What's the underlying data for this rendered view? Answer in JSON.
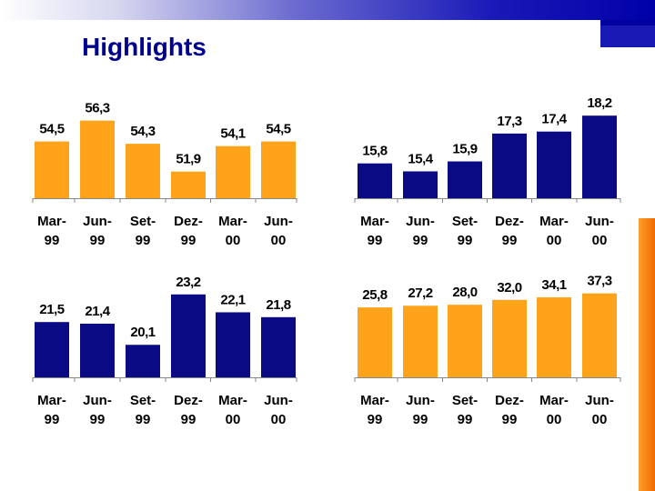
{
  "header": {
    "title": "Highlights"
  },
  "colors": {
    "orange": "#ffa31a",
    "navy": "#0a0a85"
  },
  "chart_data": [
    {
      "type": "bar",
      "panel": "top-left",
      "color": "orange",
      "categories": [
        [
          "Mar-",
          "99"
        ],
        [
          "Jun-",
          "99"
        ],
        [
          "Set-",
          "99"
        ],
        [
          "Dez-",
          "99"
        ],
        [
          "Mar-",
          "00"
        ],
        [
          "Jun-",
          "00"
        ]
      ],
      "values": [
        54.5,
        56.3,
        54.3,
        51.9,
        54.1,
        54.5
      ],
      "labels": [
        "54,5",
        "56,3",
        "54,3",
        "51,9",
        "54,1",
        "54,5"
      ],
      "ylim": [
        49.6,
        56.9
      ]
    },
    {
      "type": "bar",
      "panel": "top-right",
      "color": "navy",
      "categories": [
        [
          "Mar-",
          "99"
        ],
        [
          "Jun-",
          "99"
        ],
        [
          "Set-",
          "99"
        ],
        [
          "Dez-",
          "99"
        ],
        [
          "Mar-",
          "00"
        ],
        [
          "Jun-",
          "00"
        ]
      ],
      "values": [
        15.8,
        15.4,
        15.9,
        17.3,
        17.4,
        18.2
      ],
      "labels": [
        "15,8",
        "15,4",
        "15,9",
        "17,3",
        "17,4",
        "18,2"
      ],
      "ylim": [
        14.05,
        18.3
      ]
    },
    {
      "type": "bar",
      "panel": "bottom-left",
      "color": "navy",
      "categories": [
        [
          "Mar-",
          "99"
        ],
        [
          "Jun-",
          "99"
        ],
        [
          "Set-",
          "99"
        ],
        [
          "Dez-",
          "99"
        ],
        [
          "Mar-",
          "00"
        ],
        [
          "Jun-",
          "00"
        ]
      ],
      "values": [
        21.5,
        21.4,
        20.1,
        23.2,
        22.1,
        21.8
      ],
      "labels": [
        "21,5",
        "21,4",
        "20,1",
        "23,2",
        "22,1",
        "21,8"
      ],
      "ylim": [
        18.1,
        23.3
      ]
    },
    {
      "type": "bar",
      "panel": "bottom-right",
      "color": "orange",
      "categories": [
        [
          "Mar-",
          "99"
        ],
        [
          "Jun-",
          "99"
        ],
        [
          "Set-",
          "99"
        ],
        [
          "Dez-",
          "99"
        ],
        [
          "Mar-",
          "00"
        ],
        [
          "Jun-",
          "00"
        ]
      ],
      "values": [
        25.8,
        27.2,
        28.0,
        32.0,
        34.1,
        37.3
      ],
      "labels": [
        "25,8",
        "27,2",
        "28,0",
        "32,0",
        "34,1",
        "37,3"
      ],
      "ylim": [
        -31.4,
        37.8
      ]
    }
  ]
}
